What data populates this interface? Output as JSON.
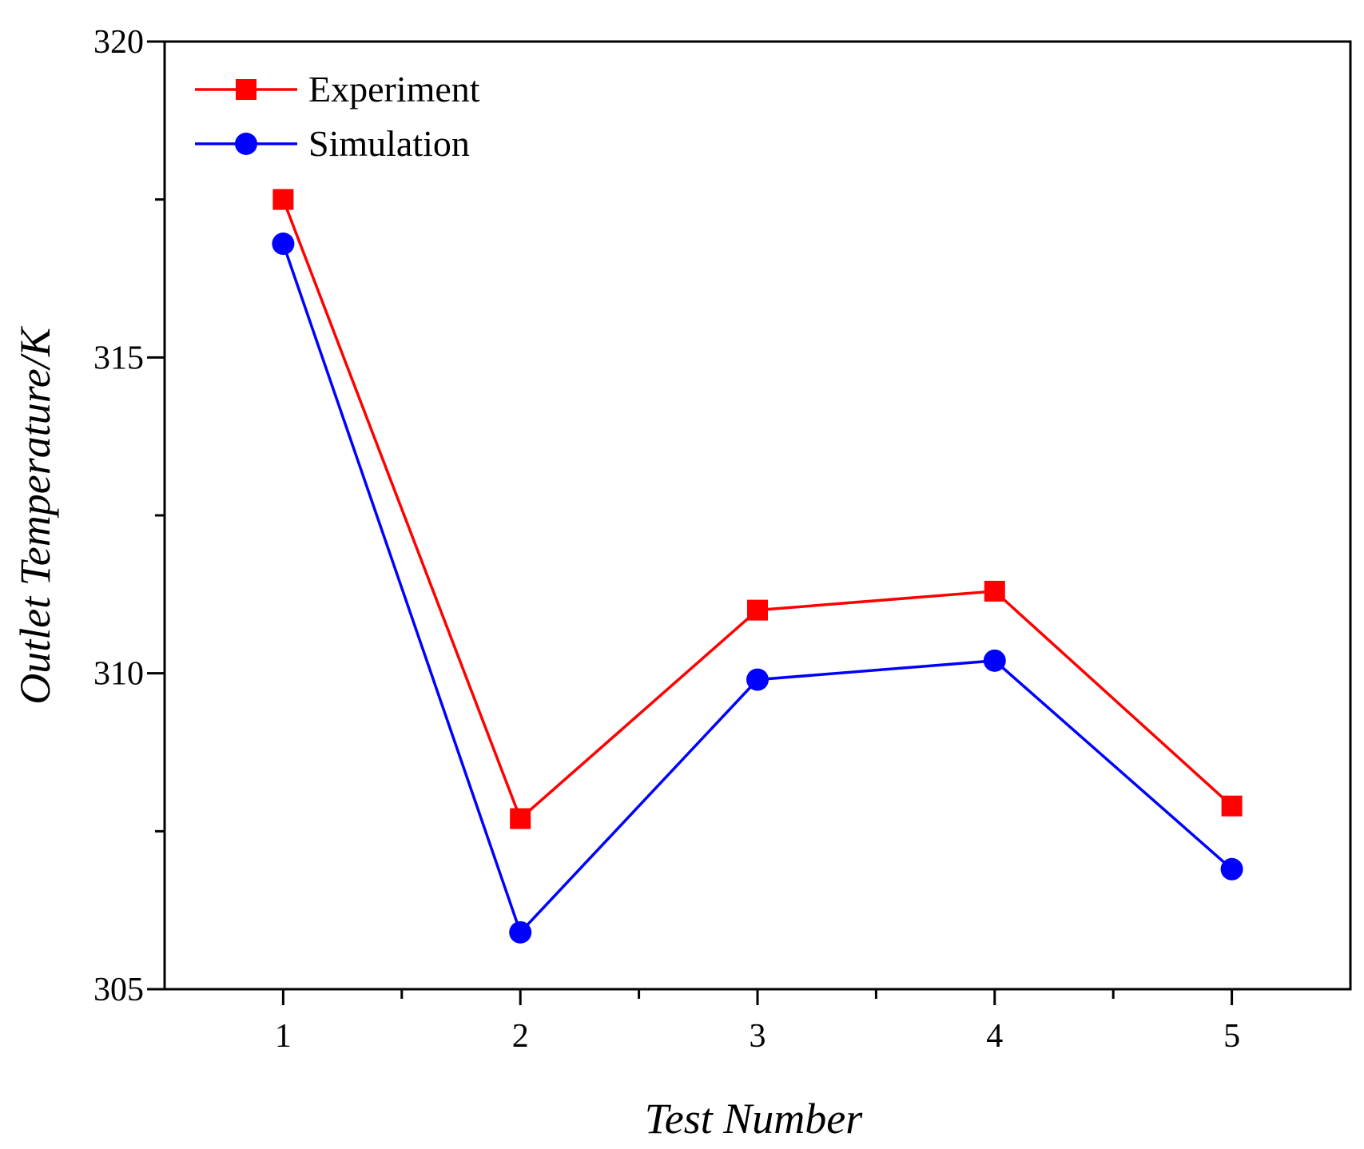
{
  "chart_data": {
    "type": "line",
    "title": "",
    "xlabel": "Test Number",
    "ylabel": "Outlet Temperature/K",
    "x": [
      1,
      2,
      3,
      4,
      5
    ],
    "xlim": [
      0.5,
      5.5
    ],
    "ylim": [
      305,
      320
    ],
    "xticks": [
      1,
      2,
      3,
      4,
      5
    ],
    "yticks": [
      305,
      310,
      315,
      320
    ],
    "grid": false,
    "legend_position": "top-left",
    "series": [
      {
        "name": "Experiment",
        "color": "#ff0000",
        "marker": "square",
        "values": [
          317.5,
          307.7,
          311.0,
          311.3,
          307.9
        ]
      },
      {
        "name": "Simulation",
        "color": "#0000ff",
        "marker": "circle",
        "values": [
          316.8,
          305.9,
          309.9,
          310.2,
          306.9
        ]
      }
    ]
  }
}
